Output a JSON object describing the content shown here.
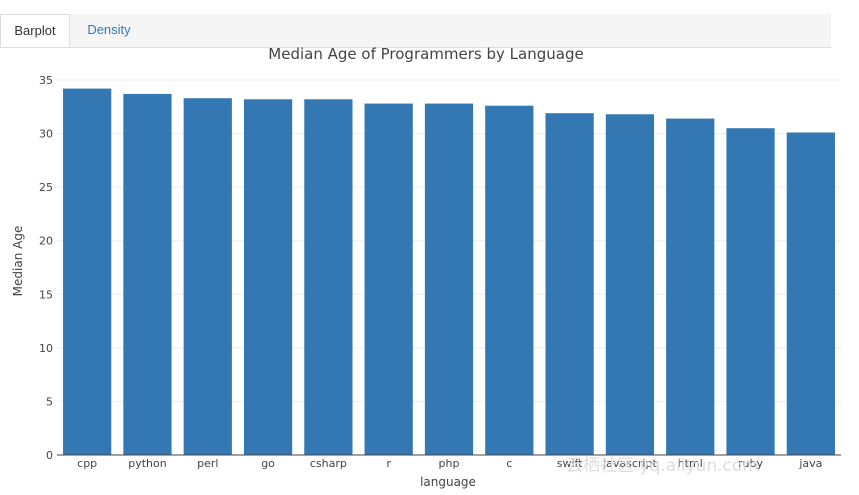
{
  "tabs": [
    {
      "label": "Barplot",
      "active": true
    },
    {
      "label": "Density",
      "active": false
    }
  ],
  "watermark": "云栖社区 yq.aliyun.com",
  "colors": {
    "bar": "#3478b3",
    "grid": "#eeeeee",
    "tab_link": "#337ab7"
  },
  "chart_data": {
    "type": "bar",
    "title": "Median Age of Programmers by Language",
    "xlabel": "language",
    "ylabel": "Median Age",
    "categories": [
      "cpp",
      "python",
      "perl",
      "go",
      "csharp",
      "r",
      "php",
      "c",
      "swift",
      "javascript",
      "html",
      "ruby",
      "java"
    ],
    "values": [
      34.2,
      33.7,
      33.3,
      33.2,
      33.2,
      32.8,
      32.8,
      32.6,
      31.9,
      31.8,
      31.4,
      30.5,
      30.1
    ],
    "ylim": [
      0,
      35
    ],
    "yticks": [
      0,
      5,
      10,
      15,
      20,
      25,
      30,
      35
    ],
    "grid": true
  }
}
